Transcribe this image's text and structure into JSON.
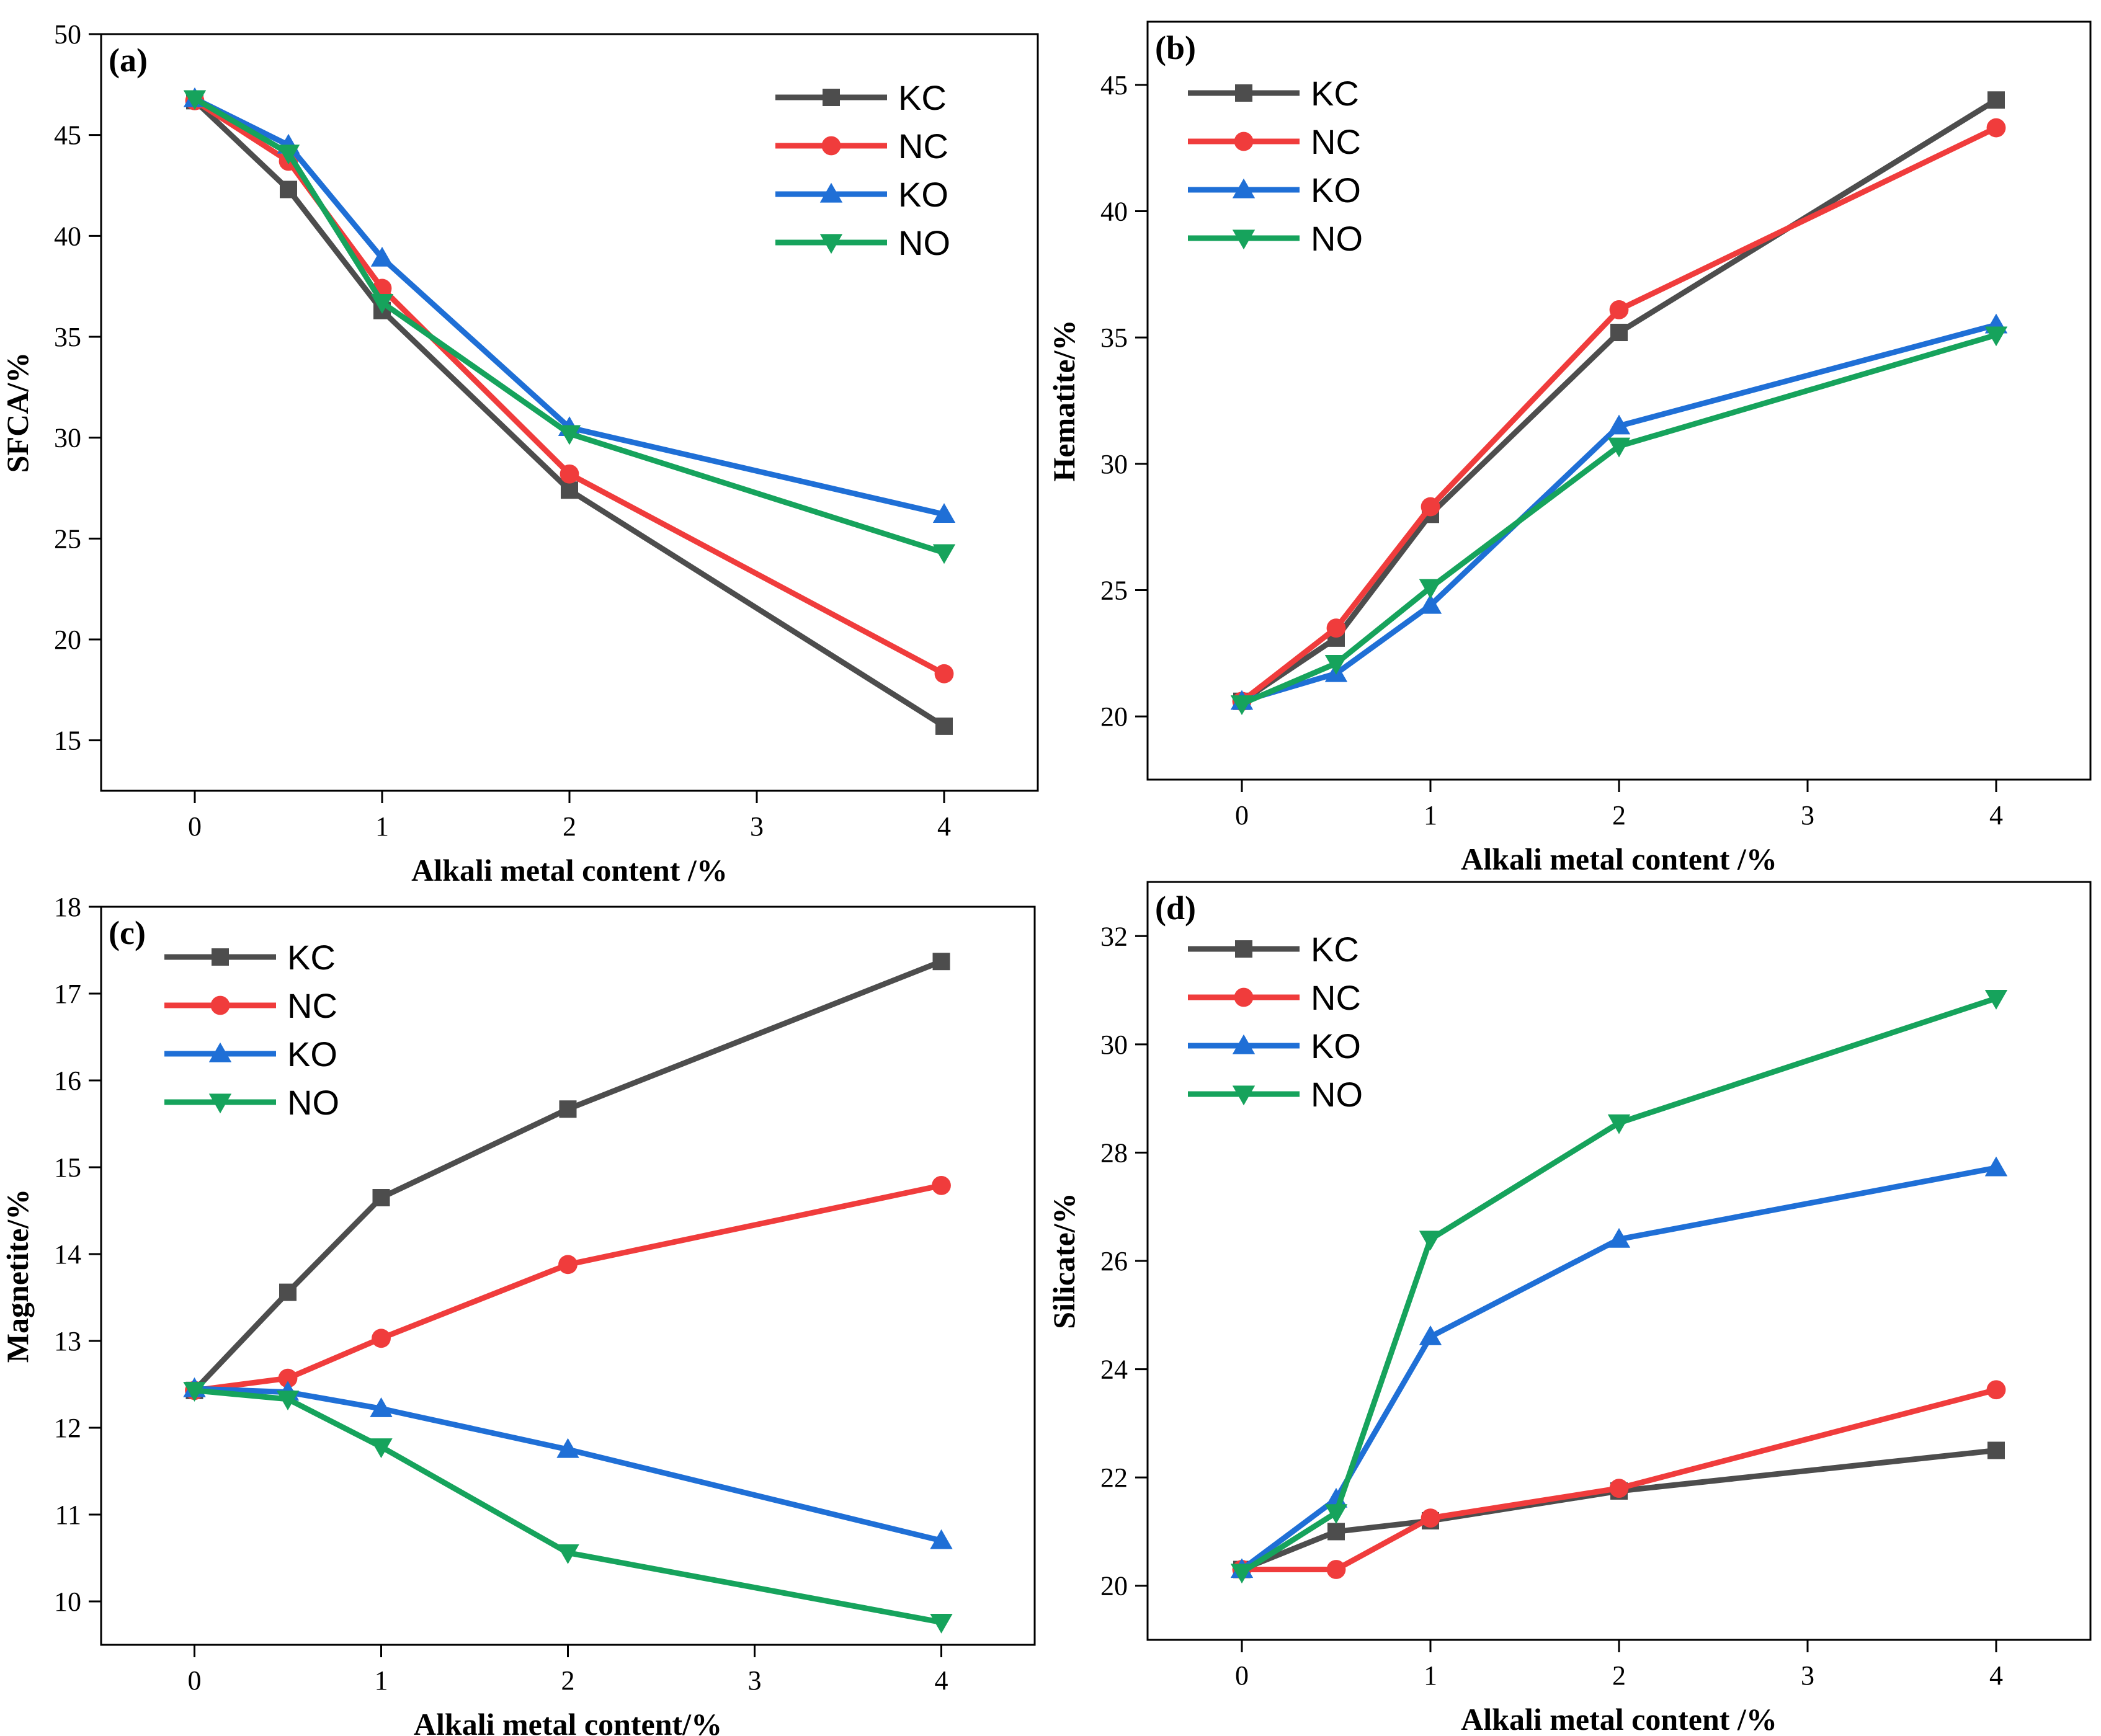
{
  "figure": {
    "title": ""
  },
  "chart_data": [
    {
      "type": "line",
      "panel_label": "(a)",
      "xlabel": "Alkali metal content /%",
      "ylabel": "SFCA/%",
      "xlim": [
        -0.5,
        4.5
      ],
      "ylim": [
        12.5,
        50
      ],
      "xticks": [
        0,
        1,
        2,
        3,
        4
      ],
      "yticks": [
        15,
        20,
        25,
        30,
        35,
        40,
        45,
        50
      ],
      "x": [
        0,
        0.5,
        1,
        2,
        4
      ],
      "legend_position": "top-right",
      "series": [
        {
          "name": "KC",
          "color": "#4d4d4d",
          "marker": "square",
          "values": [
            46.7,
            42.3,
            36.3,
            27.4,
            15.7
          ]
        },
        {
          "name": "NC",
          "color": "#f03c3c",
          "marker": "circle",
          "values": [
            46.7,
            43.7,
            37.4,
            28.2,
            18.3
          ]
        },
        {
          "name": "KO",
          "color": "#1f6fd6",
          "marker": "triangle-up",
          "values": [
            46.8,
            44.5,
            38.9,
            30.5,
            26.2
          ]
        },
        {
          "name": "NO",
          "color": "#16a35c",
          "marker": "triangle-down",
          "values": [
            46.8,
            44.1,
            36.7,
            30.2,
            24.3
          ]
        }
      ]
    },
    {
      "type": "line",
      "panel_label": "(b)",
      "xlabel": "Alkali metal content /%",
      "ylabel": "Hematite/%",
      "xlim": [
        -0.5,
        4.5
      ],
      "ylim": [
        17.5,
        47.5
      ],
      "xticks": [
        0,
        1,
        2,
        3,
        4
      ],
      "yticks": [
        20,
        25,
        30,
        35,
        40,
        45
      ],
      "x": [
        0,
        0.5,
        1,
        2,
        4
      ],
      "legend_position": "top-left",
      "series": [
        {
          "name": "KC",
          "color": "#4d4d4d",
          "marker": "square",
          "values": [
            20.6,
            23.1,
            28.0,
            35.2,
            44.4
          ]
        },
        {
          "name": "NC",
          "color": "#f03c3c",
          "marker": "circle",
          "values": [
            20.6,
            23.5,
            28.3,
            36.1,
            43.3
          ]
        },
        {
          "name": "KO",
          "color": "#1f6fd6",
          "marker": "triangle-up",
          "values": [
            20.6,
            21.7,
            24.4,
            31.5,
            35.5
          ]
        },
        {
          "name": "NO",
          "color": "#16a35c",
          "marker": "triangle-down",
          "values": [
            20.5,
            22.1,
            25.1,
            30.7,
            35.1
          ]
        }
      ]
    },
    {
      "type": "line",
      "panel_label": "(c)",
      "xlabel": "Alkali metal content/%",
      "ylabel": "Magnetite/%",
      "xlim": [
        -0.5,
        4.5
      ],
      "ylim": [
        9.5,
        18
      ],
      "xticks": [
        0,
        1,
        2,
        3,
        4
      ],
      "yticks": [
        10,
        11,
        12,
        13,
        14,
        15,
        16,
        17,
        18
      ],
      "x": [
        0,
        0.5,
        1,
        2,
        4
      ],
      "legend_position": "top-left",
      "series": [
        {
          "name": "KC",
          "color": "#4d4d4d",
          "marker": "square",
          "values": [
            12.43,
            13.56,
            14.65,
            15.67,
            17.37
          ]
        },
        {
          "name": "NC",
          "color": "#f03c3c",
          "marker": "circle",
          "values": [
            12.43,
            12.57,
            13.03,
            13.88,
            14.79
          ]
        },
        {
          "name": "KO",
          "color": "#1f6fd6",
          "marker": "triangle-up",
          "values": [
            12.45,
            12.41,
            12.22,
            11.75,
            10.7
          ]
        },
        {
          "name": "NO",
          "color": "#16a35c",
          "marker": "triangle-down",
          "values": [
            12.43,
            12.33,
            11.78,
            10.56,
            9.76
          ]
        }
      ]
    },
    {
      "type": "line",
      "panel_label": "(d)",
      "xlabel": "Alkali metal content /%",
      "ylabel": "Silicate/%",
      "xlim": [
        -0.5,
        4.5
      ],
      "ylim": [
        19,
        33
      ],
      "xticks": [
        0,
        1,
        2,
        3,
        4
      ],
      "yticks": [
        20,
        22,
        24,
        26,
        28,
        30,
        32
      ],
      "x": [
        0,
        0.5,
        1,
        2,
        4
      ],
      "legend_position": "top-left",
      "series": [
        {
          "name": "KC",
          "color": "#4d4d4d",
          "marker": "square",
          "values": [
            20.3,
            21.0,
            21.2,
            21.75,
            22.5
          ]
        },
        {
          "name": "NC",
          "color": "#f03c3c",
          "marker": "circle",
          "values": [
            20.3,
            20.3,
            21.25,
            21.8,
            23.62
          ]
        },
        {
          "name": "KO",
          "color": "#1f6fd6",
          "marker": "triangle-up",
          "values": [
            20.3,
            21.6,
            24.6,
            26.4,
            27.72
          ]
        },
        {
          "name": "NO",
          "color": "#16a35c",
          "marker": "triangle-down",
          "values": [
            20.25,
            21.35,
            26.4,
            28.55,
            30.85
          ]
        }
      ]
    }
  ]
}
